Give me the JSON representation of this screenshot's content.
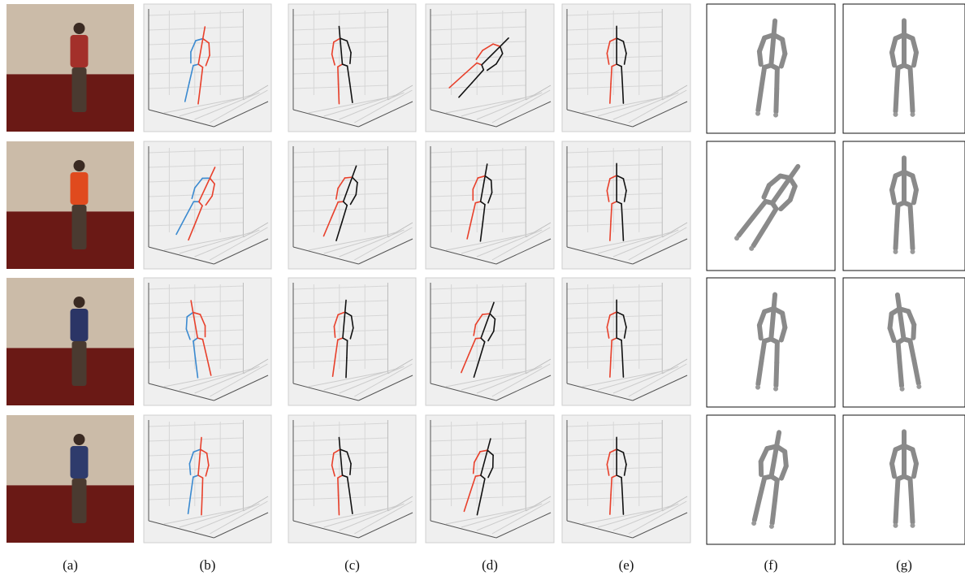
{
  "figure": {
    "column_labels": [
      "(a)",
      "(b)",
      "(c)",
      "(d)",
      "(e)",
      "(f)",
      "(g)"
    ]
  }
}
